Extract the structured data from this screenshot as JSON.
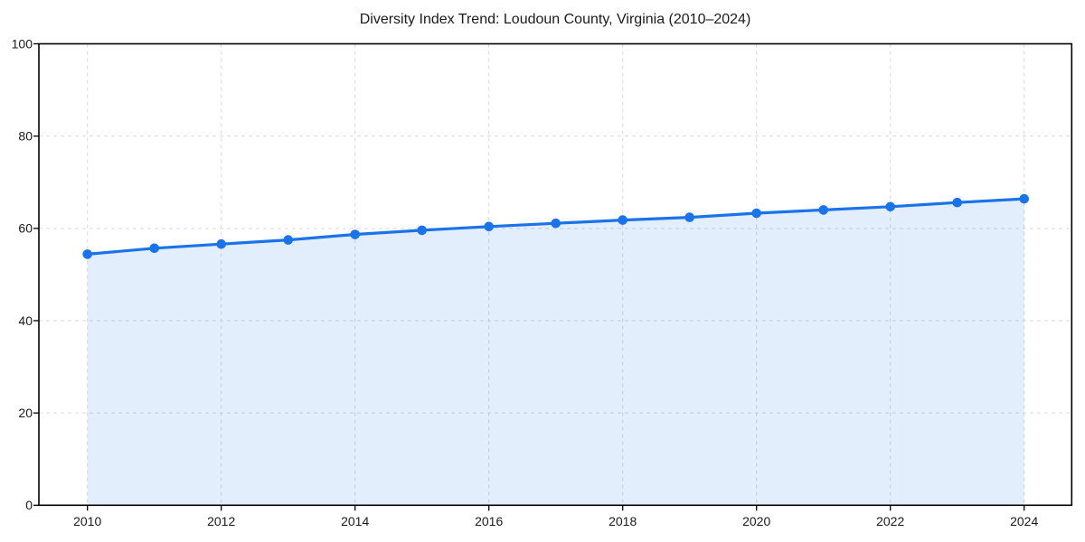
{
  "page": {
    "background": "#ffffff"
  },
  "chart_data": {
    "type": "line",
    "title": "Diversity Index Trend: Loudoun County, Virginia (2010–2024)",
    "x": [
      2010,
      2011,
      2012,
      2013,
      2014,
      2015,
      2016,
      2017,
      2018,
      2019,
      2020,
      2021,
      2022,
      2023,
      2024
    ],
    "series": [
      {
        "name": "Diversity Index",
        "values": [
          54.4,
          55.7,
          56.6,
          57.5,
          58.7,
          59.6,
          60.4,
          61.1,
          61.8,
          62.4,
          63.3,
          64.0,
          64.7,
          65.6,
          66.4
        ]
      }
    ],
    "xlabel": "",
    "ylabel": "",
    "ylim": [
      0,
      100
    ],
    "xticks": [
      2010,
      2012,
      2014,
      2016,
      2018,
      2020,
      2022,
      2024
    ],
    "yticks": [
      0,
      20,
      40,
      60,
      80,
      100
    ],
    "grid": true,
    "grid_style": "dashed",
    "legend": "none",
    "marker": "circle",
    "area_fill": true,
    "style": {
      "line_color": "#1a73e8",
      "marker_color": "#1a73e8",
      "fill_color": "#1a73e8",
      "fill_opacity": 0.12,
      "grid_color": "#d9d9d9",
      "axis_color": "#000000",
      "text_color": "#1a1a1a"
    }
  }
}
